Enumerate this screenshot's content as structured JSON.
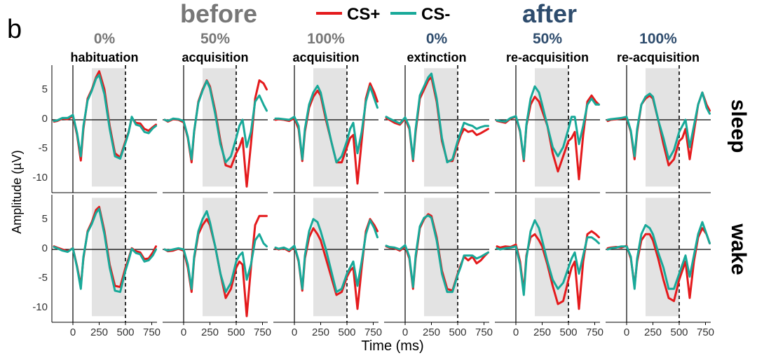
{
  "panel_label": "b",
  "groups": [
    {
      "title": "before",
      "color": "#777777"
    },
    {
      "title": "after",
      "color": "#2e4c6d"
    }
  ],
  "legend": [
    {
      "label": "CS+",
      "color": "#e41a1c"
    },
    {
      "label": "CS-",
      "color": "#18a999"
    }
  ],
  "conditions": [
    {
      "pct": "0%",
      "phase": "habituation",
      "group": "before"
    },
    {
      "pct": "50%",
      "phase": "acquisition",
      "group": "before"
    },
    {
      "pct": "100%",
      "phase": "acquisition",
      "group": "before"
    },
    {
      "pct": "0%",
      "phase": "extinction",
      "group": "after"
    },
    {
      "pct": "50%",
      "phase": "re-acquisition",
      "group": "after"
    },
    {
      "pct": "100%",
      "phase": "re-acquisition",
      "group": "after"
    }
  ],
  "rows": [
    "sleep",
    "wake"
  ],
  "chart_data": {
    "type": "line",
    "title": "",
    "xlabel": "Time (ms)",
    "ylabel": "Amplitude (µV)",
    "xlim": [
      -200,
      800
    ],
    "ylim": [
      -12,
      9
    ],
    "x_ticks": [
      0,
      250,
      500,
      750
    ],
    "x_tick_labels": [
      "0",
      "250",
      "500",
      "750"
    ],
    "y_ticks": [
      5,
      0,
      -5,
      -10
    ],
    "y_tick_labels": [
      "5",
      "0",
      "-5",
      "-10"
    ],
    "shaded_window_ms": [
      180,
      500
    ],
    "dashed_line_ms": 500,
    "x": [
      -180,
      -150,
      -100,
      -50,
      0,
      40,
      75,
      100,
      140,
      180,
      220,
      250,
      300,
      350,
      400,
      450,
      500,
      530,
      560,
      600,
      640,
      680,
      720,
      760,
      790
    ],
    "series": [
      {
        "row": "sleep",
        "cond": 0,
        "name": "CS+",
        "values": [
          -0.3,
          -0.2,
          0.2,
          0.1,
          0.6,
          -2.5,
          -6.7,
          -1.5,
          3.5,
          5.0,
          7.0,
          8.0,
          5.0,
          -1.0,
          -5.5,
          -6.2,
          -3.5,
          -2.0,
          0.3,
          -0.5,
          -0.6,
          -1.5,
          -1.8,
          -1.2,
          -0.8
        ]
      },
      {
        "row": "sleep",
        "cond": 0,
        "name": "CS-",
        "values": [
          -0.2,
          -0.1,
          0.3,
          0.3,
          0.8,
          -2.2,
          -6.0,
          -1.0,
          3.2,
          4.8,
          6.8,
          7.4,
          4.2,
          -1.5,
          -6.0,
          -6.4,
          -3.8,
          -2.1,
          0.5,
          -0.8,
          -1.0,
          -2.0,
          -2.2,
          -1.4,
          -1.0
        ]
      },
      {
        "row": "sleep",
        "cond": 1,
        "name": "CS+",
        "values": [
          0.0,
          -0.3,
          0.1,
          0.0,
          -0.4,
          -3.0,
          -7.0,
          -2.0,
          3.0,
          5.0,
          6.5,
          5.5,
          1.5,
          -3.5,
          -7.5,
          -7.8,
          -5.5,
          -4.5,
          -3.0,
          -11.0,
          -4.0,
          3.5,
          6.5,
          6.0,
          5.0
        ]
      },
      {
        "row": "sleep",
        "cond": 1,
        "name": "CS-",
        "values": [
          0.0,
          -0.2,
          0.2,
          0.1,
          -0.2,
          -2.8,
          -6.5,
          -1.8,
          2.8,
          4.8,
          6.4,
          5.2,
          1.0,
          -4.0,
          -7.0,
          -6.0,
          -3.0,
          -1.0,
          0.0,
          -4.5,
          -2.0,
          3.0,
          4.0,
          2.5,
          1.5
        ]
      },
      {
        "row": "sleep",
        "cond": 2,
        "name": "CS+",
        "values": [
          0.0,
          0.1,
          0.0,
          -0.2,
          0.3,
          -1.5,
          -6.8,
          -2.0,
          2.0,
          3.8,
          4.8,
          4.0,
          0.0,
          -3.5,
          -7.0,
          -7.0,
          -4.5,
          -3.0,
          -2.5,
          -10.5,
          -3.5,
          3.5,
          6.0,
          4.5,
          3.0
        ]
      },
      {
        "row": "sleep",
        "cond": 2,
        "name": "CS-",
        "values": [
          0.2,
          0.2,
          0.1,
          0.0,
          0.5,
          -1.0,
          -6.5,
          -1.5,
          2.5,
          4.5,
          5.6,
          4.5,
          0.5,
          -3.5,
          -7.0,
          -6.0,
          -3.5,
          -1.5,
          -0.5,
          -5.5,
          -2.0,
          3.0,
          5.5,
          3.5,
          2.0
        ]
      },
      {
        "row": "sleep",
        "cond": 3,
        "name": "CS+",
        "values": [
          0.3,
          0.0,
          -0.5,
          -0.8,
          0.2,
          -1.5,
          -6.8,
          -2.0,
          3.5,
          5.0,
          6.5,
          7.0,
          3.0,
          -3.5,
          -6.8,
          -6.8,
          -4.0,
          -2.5,
          -1.5,
          -2.0,
          -1.8,
          -2.5,
          -2.2,
          -1.8,
          -1.5
        ]
      },
      {
        "row": "sleep",
        "cond": 3,
        "name": "CS-",
        "values": [
          0.5,
          0.2,
          -0.2,
          -0.6,
          0.4,
          -1.2,
          -6.5,
          -1.5,
          4.0,
          5.5,
          7.0,
          7.6,
          3.5,
          -3.0,
          -7.0,
          -6.5,
          -3.5,
          -2.0,
          -0.5,
          -0.8,
          -1.0,
          -1.5,
          -1.2,
          -1.0,
          -1.0
        ]
      },
      {
        "row": "sleep",
        "cond": 4,
        "name": "CS+",
        "values": [
          -0.2,
          -0.3,
          -0.5,
          0.2,
          0.5,
          -2.0,
          -6.8,
          -1.0,
          2.5,
          3.8,
          3.0,
          1.5,
          -1.0,
          -5.5,
          -8.5,
          -6.0,
          -3.5,
          -3.0,
          -2.0,
          -9.8,
          -2.5,
          3.0,
          4.0,
          3.0,
          2.5
        ]
      },
      {
        "row": "sleep",
        "cond": 4,
        "name": "CS-",
        "values": [
          -0.1,
          -0.2,
          -0.3,
          0.3,
          0.6,
          -1.8,
          -6.5,
          -0.8,
          3.5,
          5.5,
          4.5,
          2.5,
          -1.0,
          -4.5,
          -6.0,
          -4.5,
          -1.5,
          0.5,
          0.5,
          -4.0,
          -1.0,
          2.5,
          3.5,
          2.5,
          2.5
        ]
      },
      {
        "row": "sleep",
        "cond": 5,
        "name": "CS+",
        "values": [
          -0.2,
          0.0,
          0.1,
          0.2,
          0.3,
          -2.0,
          -6.5,
          -2.0,
          2.5,
          3.5,
          4.0,
          3.5,
          0.0,
          -4.0,
          -7.5,
          -6.5,
          -3.5,
          -3.0,
          -1.5,
          -6.5,
          -2.0,
          2.5,
          4.5,
          2.5,
          1.5
        ]
      },
      {
        "row": "sleep",
        "cond": 5,
        "name": "CS-",
        "values": [
          0.0,
          0.1,
          0.2,
          0.3,
          0.5,
          -1.8,
          -6.0,
          -1.5,
          2.5,
          3.8,
          4.3,
          3.8,
          0.0,
          -3.0,
          -6.5,
          -5.0,
          -2.0,
          -1.0,
          0.0,
          -4.5,
          -1.0,
          2.5,
          4.5,
          2.0,
          1.0
        ]
      },
      {
        "row": "wake",
        "cond": 0,
        "name": "CS+",
        "values": [
          0.5,
          0.3,
          0.0,
          -0.3,
          0.2,
          -2.8,
          -6.0,
          -1.5,
          3.0,
          4.5,
          6.5,
          7.0,
          3.0,
          -2.5,
          -6.0,
          -6.2,
          -3.0,
          -1.5,
          0.2,
          -0.3,
          -0.5,
          -1.6,
          -1.5,
          -0.5,
          0.5
        ]
      },
      {
        "row": "wake",
        "cond": 0,
        "name": "CS-",
        "values": [
          0.4,
          0.2,
          -0.2,
          -0.4,
          0.2,
          -3.0,
          -6.5,
          -1.2,
          2.8,
          4.2,
          6.0,
          6.7,
          2.5,
          -3.0,
          -6.8,
          -7.0,
          -3.5,
          -1.8,
          0.1,
          -0.6,
          -0.8,
          -2.0,
          -1.8,
          -1.0,
          0.0
        ]
      },
      {
        "row": "wake",
        "cond": 1,
        "name": "CS+",
        "values": [
          0.0,
          -0.3,
          -0.2,
          0.1,
          -0.2,
          -3.0,
          -7.0,
          -1.5,
          2.5,
          4.0,
          5.0,
          4.0,
          0.5,
          -4.0,
          -8.0,
          -6.5,
          -3.0,
          -2.0,
          -2.5,
          -11.0,
          -3.0,
          4.0,
          5.5,
          5.5,
          5.5
        ]
      },
      {
        "row": "wake",
        "cond": 1,
        "name": "CS-",
        "values": [
          0.0,
          -0.2,
          0.0,
          0.2,
          0.0,
          -2.5,
          -6.5,
          -1.2,
          3.0,
          5.0,
          6.3,
          4.5,
          0.5,
          -4.0,
          -7.0,
          -5.5,
          -2.0,
          -1.0,
          -0.5,
          -5.0,
          -2.5,
          1.5,
          2.5,
          1.0,
          0.5
        ]
      },
      {
        "row": "wake",
        "cond": 2,
        "name": "CS+",
        "values": [
          0.2,
          0.0,
          0.2,
          -0.3,
          0.5,
          -2.0,
          -6.8,
          -1.5,
          2.0,
          3.5,
          2.5,
          1.5,
          -1.5,
          -4.5,
          -7.5,
          -7.0,
          -4.5,
          -3.5,
          -3.0,
          -9.8,
          -3.0,
          3.0,
          5.0,
          4.0,
          3.0
        ]
      },
      {
        "row": "wake",
        "cond": 2,
        "name": "CS-",
        "values": [
          0.3,
          0.1,
          0.3,
          -0.1,
          0.6,
          -1.8,
          -6.5,
          -1.0,
          3.0,
          5.0,
          4.5,
          3.0,
          0.0,
          -3.5,
          -7.0,
          -6.5,
          -4.0,
          -3.0,
          -2.0,
          -6.0,
          -2.0,
          2.5,
          4.8,
          3.5,
          2.0
        ]
      },
      {
        "row": "wake",
        "cond": 3,
        "name": "CS+",
        "values": [
          0.5,
          0.3,
          0.2,
          -0.2,
          0.5,
          -1.5,
          -6.5,
          -1.5,
          3.5,
          5.0,
          5.8,
          5.5,
          2.0,
          -3.5,
          -6.5,
          -6.8,
          -4.0,
          -2.5,
          -1.2,
          -1.8,
          -1.2,
          -2.3,
          -1.8,
          -1.0,
          -0.5
        ]
      },
      {
        "row": "wake",
        "cond": 3,
        "name": "CS-",
        "values": [
          0.6,
          0.4,
          0.3,
          0.0,
          0.7,
          -1.2,
          -6.2,
          -1.0,
          3.8,
          5.2,
          5.6,
          5.2,
          1.5,
          -4.0,
          -7.0,
          -7.0,
          -4.2,
          -2.8,
          -1.0,
          -1.0,
          -1.0,
          -1.5,
          -1.2,
          -0.8,
          -0.5
        ]
      },
      {
        "row": "wake",
        "cond": 4,
        "name": "CS+",
        "values": [
          0.5,
          0.3,
          0.5,
          0.4,
          0.8,
          -2.0,
          -7.0,
          -1.0,
          2.0,
          2.5,
          1.5,
          0.5,
          -2.5,
          -6.0,
          -9.0,
          -8.5,
          -5.0,
          -3.0,
          -2.0,
          -9.8,
          -2.0,
          2.5,
          3.0,
          2.5,
          2.0
        ]
      },
      {
        "row": "wake",
        "cond": 4,
        "name": "CS-",
        "values": [
          0.2,
          0.0,
          0.2,
          0.3,
          0.5,
          -2.5,
          -7.5,
          -1.5,
          3.0,
          4.8,
          3.5,
          1.5,
          -2.0,
          -5.0,
          -6.5,
          -5.5,
          -3.0,
          -1.5,
          -0.5,
          -4.0,
          -1.0,
          2.0,
          2.0,
          1.5,
          1.0
        ]
      },
      {
        "row": "wake",
        "cond": 5,
        "name": "CS+",
        "values": [
          0.2,
          0.3,
          0.4,
          0.3,
          0.6,
          -1.5,
          -6.0,
          -2.0,
          1.5,
          2.5,
          2.5,
          1.5,
          -1.5,
          -5.0,
          -8.0,
          -8.5,
          -5.0,
          -3.5,
          -2.0,
          -8.0,
          -2.0,
          2.0,
          3.5,
          2.5,
          1.0
        ]
      },
      {
        "row": "wake",
        "cond": 5,
        "name": "CS-",
        "values": [
          0.0,
          0.2,
          0.3,
          0.5,
          0.5,
          -1.2,
          -6.5,
          -1.5,
          2.5,
          4.0,
          3.5,
          2.5,
          -0.5,
          -3.0,
          -6.5,
          -6.5,
          -4.0,
          -2.5,
          -1.0,
          -4.5,
          -1.0,
          2.5,
          4.5,
          2.5,
          1.0
        ]
      }
    ]
  }
}
